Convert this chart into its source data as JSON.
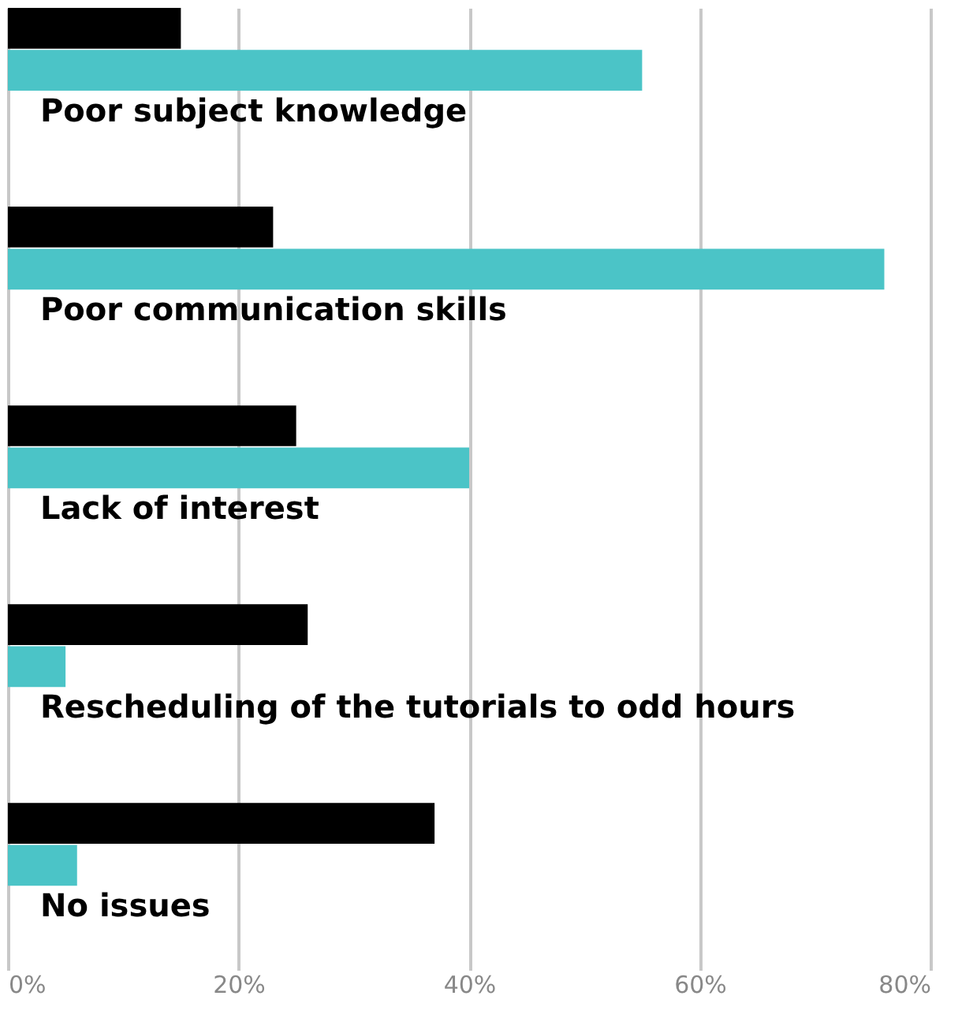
{
  "chart_data": {
    "type": "bar",
    "orientation": "horizontal",
    "categories": [
      "Poor subject knowledge",
      "Poor communication skills",
      "Lack of interest",
      "Rescheduling of the tutorials to odd hours",
      "No issues"
    ],
    "series": [
      {
        "color": "#000000",
        "values": [
          15,
          23,
          25,
          26,
          37
        ]
      },
      {
        "color": "#4bc4c7",
        "values": [
          55,
          76,
          40,
          5,
          6
        ]
      }
    ],
    "xlim": [
      0,
      80
    ],
    "xticks": [
      {
        "value": 0,
        "label": "0%"
      },
      {
        "value": 20,
        "label": "20%"
      },
      {
        "value": 40,
        "label": "40%"
      },
      {
        "value": 60,
        "label": "60%"
      },
      {
        "value": 80,
        "label": "80%"
      }
    ],
    "grid": "x",
    "legend": false
  }
}
